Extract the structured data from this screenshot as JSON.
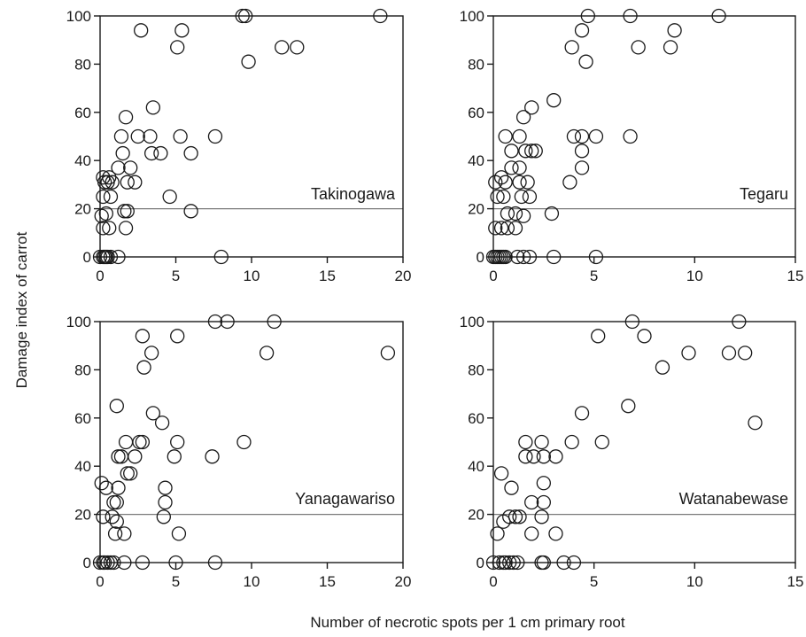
{
  "figure": {
    "ylabel": "Damage index of carrot",
    "xlabel": "Number of necrotic spots per 1 cm primary root"
  },
  "style": {
    "axis_color": "#1a1a1a",
    "marker_stroke": "#1a1a1a",
    "marker_fill": "none",
    "reference_line_color": "#7a7a7a"
  },
  "chart_data": [
    {
      "type": "scatter",
      "title": "Takinogawa",
      "xlim": [
        0,
        20
      ],
      "ylim": [
        0,
        100
      ],
      "xticks": [
        0,
        5,
        10,
        15,
        20
      ],
      "yticks": [
        0,
        20,
        40,
        60,
        80,
        100
      ],
      "reference_line_y": 20,
      "points": [
        [
          0,
          0
        ],
        [
          0.2,
          0
        ],
        [
          0.3,
          0
        ],
        [
          0.4,
          0
        ],
        [
          0.5,
          0
        ],
        [
          0.7,
          0
        ],
        [
          1.2,
          0
        ],
        [
          8,
          0
        ],
        [
          0.2,
          12
        ],
        [
          0.6,
          12
        ],
        [
          1.7,
          12
        ],
        [
          0.1,
          17
        ],
        [
          0.4,
          18
        ],
        [
          1.6,
          19
        ],
        [
          1.8,
          19
        ],
        [
          6,
          19
        ],
        [
          0.2,
          25
        ],
        [
          0.7,
          25
        ],
        [
          4.6,
          25
        ],
        [
          0.3,
          31
        ],
        [
          0.5,
          31
        ],
        [
          0.8,
          31
        ],
        [
          1.8,
          31
        ],
        [
          2.3,
          31
        ],
        [
          0.2,
          33
        ],
        [
          0.6,
          33
        ],
        [
          1.2,
          37
        ],
        [
          2,
          37
        ],
        [
          1.5,
          43
        ],
        [
          3.4,
          43
        ],
        [
          4,
          43
        ],
        [
          6,
          43
        ],
        [
          1.4,
          50
        ],
        [
          2.5,
          50
        ],
        [
          3.3,
          50
        ],
        [
          5.3,
          50
        ],
        [
          7.6,
          50
        ],
        [
          1.7,
          58
        ],
        [
          3.5,
          62
        ],
        [
          5.1,
          87
        ],
        [
          12,
          87
        ],
        [
          13,
          87
        ],
        [
          2.7,
          94
        ],
        [
          5.4,
          94
        ],
        [
          9.8,
          81
        ],
        [
          9.4,
          100
        ],
        [
          9.6,
          100
        ],
        [
          18.5,
          100
        ]
      ]
    },
    {
      "type": "scatter",
      "title": "Tegaru",
      "xlim": [
        0,
        15
      ],
      "ylim": [
        0,
        100
      ],
      "xticks": [
        0,
        5,
        10,
        15
      ],
      "yticks": [
        0,
        20,
        40,
        60,
        80,
        100
      ],
      "reference_line_y": 20,
      "points": [
        [
          0,
          0
        ],
        [
          0.1,
          0
        ],
        [
          0.2,
          0
        ],
        [
          0.3,
          0
        ],
        [
          0.4,
          0
        ],
        [
          0.5,
          0
        ],
        [
          0.6,
          0
        ],
        [
          1.2,
          0
        ],
        [
          1.5,
          0
        ],
        [
          1.8,
          0
        ],
        [
          3,
          0
        ],
        [
          5.1,
          0
        ],
        [
          0.1,
          12
        ],
        [
          0.4,
          12
        ],
        [
          0.7,
          12
        ],
        [
          1.1,
          12
        ],
        [
          0.7,
          18
        ],
        [
          1.1,
          18
        ],
        [
          1.5,
          17
        ],
        [
          2.9,
          18
        ],
        [
          0.2,
          25
        ],
        [
          0.5,
          25
        ],
        [
          1.4,
          25
        ],
        [
          1.8,
          25
        ],
        [
          0.1,
          31
        ],
        [
          0.6,
          31
        ],
        [
          1.3,
          31
        ],
        [
          1.7,
          31
        ],
        [
          3.8,
          31
        ],
        [
          0.4,
          33
        ],
        [
          0.9,
          37
        ],
        [
          1.3,
          37
        ],
        [
          4.4,
          37
        ],
        [
          0.9,
          44
        ],
        [
          1.6,
          44
        ],
        [
          1.9,
          44
        ],
        [
          2.1,
          44
        ],
        [
          4.4,
          44
        ],
        [
          0.6,
          50
        ],
        [
          1.3,
          50
        ],
        [
          4,
          50
        ],
        [
          4.4,
          50
        ],
        [
          5.1,
          50
        ],
        [
          6.8,
          50
        ],
        [
          1.5,
          58
        ],
        [
          1.9,
          62
        ],
        [
          3,
          65
        ],
        [
          3.9,
          87
        ],
        [
          4.6,
          81
        ],
        [
          7.2,
          87
        ],
        [
          8.8,
          87
        ],
        [
          4.4,
          94
        ],
        [
          9,
          94
        ],
        [
          4.7,
          100
        ],
        [
          6.8,
          100
        ],
        [
          11.2,
          100
        ]
      ]
    },
    {
      "type": "scatter",
      "title": "Yanagawariso",
      "xlim": [
        0,
        20
      ],
      "ylim": [
        0,
        100
      ],
      "xticks": [
        0,
        5,
        10,
        15,
        20
      ],
      "yticks": [
        0,
        20,
        40,
        60,
        80,
        100
      ],
      "reference_line_y": 20,
      "points": [
        [
          0,
          0
        ],
        [
          0.2,
          0
        ],
        [
          0.3,
          0
        ],
        [
          0.5,
          0
        ],
        [
          0.7,
          0
        ],
        [
          0.9,
          0
        ],
        [
          1.6,
          0
        ],
        [
          2.8,
          0
        ],
        [
          5,
          0
        ],
        [
          7.6,
          0
        ],
        [
          1,
          12
        ],
        [
          1.6,
          12
        ],
        [
          5.2,
          12
        ],
        [
          0.2,
          19
        ],
        [
          0.8,
          19
        ],
        [
          1.1,
          17
        ],
        [
          4.2,
          19
        ],
        [
          0.9,
          25
        ],
        [
          1.1,
          25
        ],
        [
          4.3,
          25
        ],
        [
          0.4,
          31
        ],
        [
          1.2,
          31
        ],
        [
          4.3,
          31
        ],
        [
          0.1,
          33
        ],
        [
          1.8,
          37
        ],
        [
          2,
          37
        ],
        [
          1.2,
          44
        ],
        [
          1.4,
          44
        ],
        [
          2.3,
          44
        ],
        [
          4.9,
          44
        ],
        [
          7.4,
          44
        ],
        [
          1.7,
          50
        ],
        [
          2.6,
          50
        ],
        [
          2.8,
          50
        ],
        [
          5.1,
          50
        ],
        [
          9.5,
          50
        ],
        [
          4.1,
          58
        ],
        [
          1.1,
          65
        ],
        [
          3.5,
          62
        ],
        [
          2.9,
          81
        ],
        [
          3.4,
          87
        ],
        [
          11,
          87
        ],
        [
          19,
          87
        ],
        [
          2.8,
          94
        ],
        [
          5.1,
          94
        ],
        [
          7.6,
          100
        ],
        [
          8.4,
          100
        ],
        [
          11.5,
          100
        ]
      ]
    },
    {
      "type": "scatter",
      "title": "Watanabewase",
      "xlim": [
        0,
        15
      ],
      "ylim": [
        0,
        100
      ],
      "xticks": [
        0,
        5,
        10,
        15
      ],
      "yticks": [
        0,
        20,
        40,
        60,
        80,
        100
      ],
      "reference_line_y": 20,
      "points": [
        [
          0,
          0
        ],
        [
          0.3,
          0
        ],
        [
          0.5,
          0
        ],
        [
          0.6,
          0
        ],
        [
          0.8,
          0
        ],
        [
          1,
          0
        ],
        [
          1.2,
          0
        ],
        [
          2.4,
          0
        ],
        [
          2.5,
          0
        ],
        [
          3.5,
          0
        ],
        [
          4,
          0
        ],
        [
          0.2,
          12
        ],
        [
          1.9,
          12
        ],
        [
          3.1,
          12
        ],
        [
          0.5,
          17
        ],
        [
          0.8,
          19
        ],
        [
          1.1,
          19
        ],
        [
          1.3,
          19
        ],
        [
          2.4,
          19
        ],
        [
          1.9,
          25
        ],
        [
          2.5,
          25
        ],
        [
          0.9,
          31
        ],
        [
          2.5,
          33
        ],
        [
          0.4,
          37
        ],
        [
          1.6,
          44
        ],
        [
          2.0,
          44
        ],
        [
          2.5,
          44
        ],
        [
          3.1,
          44
        ],
        [
          1.6,
          50
        ],
        [
          2.4,
          50
        ],
        [
          3.9,
          50
        ],
        [
          5.4,
          50
        ],
        [
          13,
          58
        ],
        [
          4.4,
          62
        ],
        [
          6.7,
          65
        ],
        [
          8.4,
          81
        ],
        [
          9.7,
          87
        ],
        [
          11.7,
          87
        ],
        [
          12.5,
          87
        ],
        [
          5.2,
          94
        ],
        [
          7.5,
          94
        ],
        [
          6.9,
          100
        ],
        [
          12.2,
          100
        ]
      ]
    }
  ]
}
